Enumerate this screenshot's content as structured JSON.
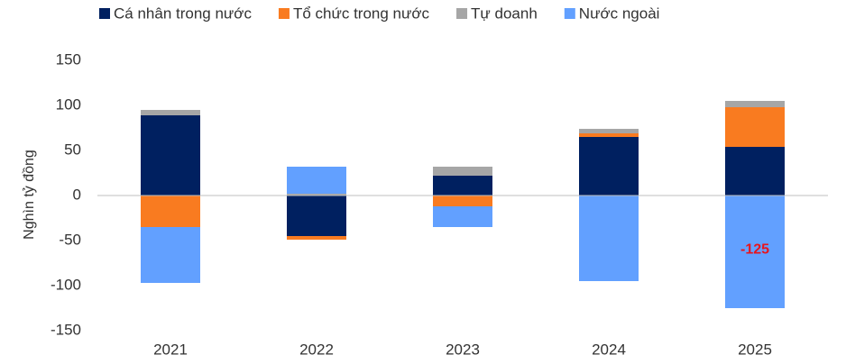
{
  "chart_data": {
    "type": "stacked_bar",
    "y_axis_label": "Nghìn tỷ đồng",
    "categories": [
      "2021",
      "2022",
      "2023",
      "2024",
      "2025"
    ],
    "series": [
      {
        "name": "Cá nhân trong nước",
        "color": "#002060",
        "values": [
          89,
          -45,
          22,
          65,
          54
        ]
      },
      {
        "name": "Tổ chức trong nước",
        "color": "#f97b20",
        "values": [
          -35,
          -4,
          -12,
          4,
          44
        ]
      },
      {
        "name": "Tự doanh",
        "color": "#a6a6a6",
        "values": [
          6,
          2,
          10,
          5,
          7
        ]
      },
      {
        "name": "Nước ngoài",
        "color": "#62a0ff",
        "values": [
          -62,
          30,
          -23,
          -95,
          -125
        ],
        "value_labels": [
          null,
          null,
          null,
          null,
          "-125"
        ],
        "label_color": "#e8141c"
      }
    ],
    "ylim": [
      -150,
      150
    ],
    "yticks": [
      -150,
      -100,
      -50,
      0,
      50,
      100,
      150
    ],
    "grid": false,
    "legend": "top"
  }
}
